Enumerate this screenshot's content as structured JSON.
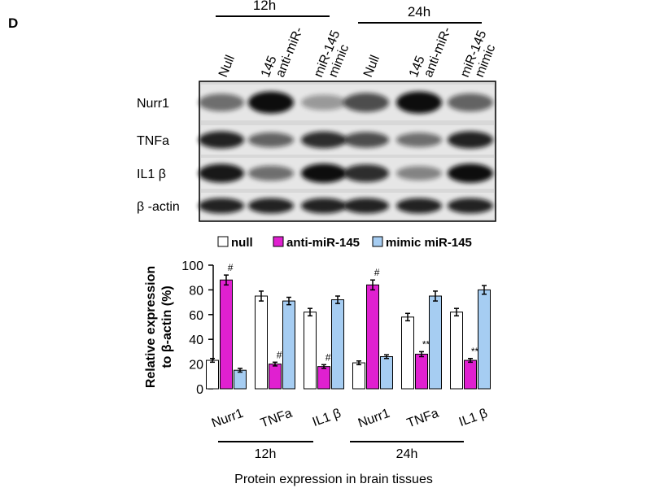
{
  "panel": "D",
  "blot": {
    "times": [
      "12h",
      "24h"
    ],
    "columns": [
      [
        "Null"
      ],
      [
        "anti-miR-",
        "145"
      ],
      [
        "mimic",
        "miR-145"
      ],
      [
        "Null"
      ],
      [
        "anti-miR-",
        "145"
      ],
      [
        "mimic",
        "miR-145"
      ]
    ],
    "rows": [
      "Nurr1",
      "TNFa",
      "IL1 β",
      "β -actin"
    ]
  },
  "chart_data": {
    "type": "bar",
    "categories": [
      "Nurr1",
      "TNFa",
      "IL1 β",
      "Nurr1",
      "TNFa",
      "IL1 β"
    ],
    "groups": [
      "12h",
      "24h"
    ],
    "xlabel": "Protein expression in brain tissues",
    "ylabel": [
      "Relative expression",
      "to β-actin (%)"
    ],
    "ylim": [
      0,
      100
    ],
    "yticks": [
      0,
      20,
      40,
      60,
      80,
      100
    ],
    "legend": "top",
    "series": [
      {
        "name": "null",
        "color": "#ffffff",
        "values": [
          23,
          75,
          62,
          21,
          58,
          62
        ],
        "errors": [
          1.5,
          4,
          3,
          1.5,
          3,
          3
        ]
      },
      {
        "name": "anti-miR-145",
        "color": "#e020d0",
        "values": [
          88,
          20,
          18,
          84,
          28,
          23
        ],
        "errors": [
          4,
          1.5,
          1.5,
          4,
          2,
          1.5
        ],
        "annotations": [
          "#",
          "#",
          "#",
          "#",
          "**",
          "**"
        ]
      },
      {
        "name": "mimic miR-145",
        "color": "#a6cdf2",
        "values": [
          15,
          71,
          72,
          26,
          75,
          80
        ],
        "errors": [
          1.5,
          3,
          3,
          1.5,
          4,
          3.5
        ]
      }
    ]
  }
}
